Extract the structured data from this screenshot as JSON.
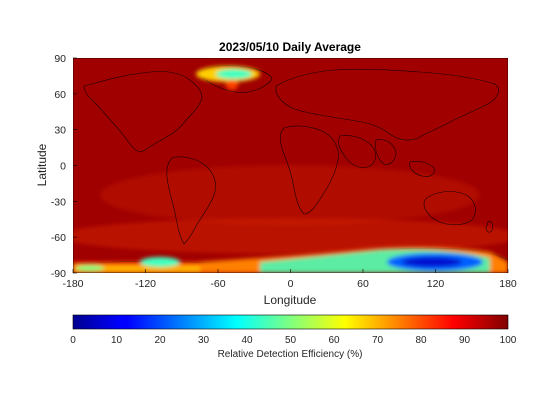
{
  "chart_data": {
    "type": "heatmap",
    "title": "2023/05/10 Daily Average",
    "xlabel": "Longitude",
    "ylabel": "Latitude",
    "xlim": [
      -180,
      180
    ],
    "ylim": [
      -90,
      90
    ],
    "xticks": [
      -180,
      -120,
      -60,
      0,
      60,
      120,
      180
    ],
    "yticks": [
      90,
      60,
      30,
      0,
      -30,
      -60,
      -90
    ],
    "colorbar": {
      "label": "Relative Detection Efficiency (%)",
      "ticks": [
        0,
        10,
        20,
        30,
        40,
        50,
        60,
        70,
        80,
        90,
        100
      ],
      "range": [
        0,
        100
      ],
      "colormap": "jet"
    },
    "background_value": 97,
    "regions": [
      {
        "name": "greenland",
        "lon": [
          -68,
          -22
        ],
        "lat": [
          60,
          84
        ],
        "value": 45
      },
      {
        "name": "antarctica-east",
        "lon": [
          70,
          165
        ],
        "lat": [
          -88,
          -68
        ],
        "value": 15
      },
      {
        "name": "antarctica-west",
        "lon": [
          -135,
          -102
        ],
        "lat": [
          -86,
          -76
        ],
        "value": 38
      },
      {
        "name": "antarctica-margin",
        "lon": [
          -180,
          180
        ],
        "lat": [
          -90,
          -70
        ],
        "value": 70
      }
    ]
  },
  "colors": {
    "background": "#ffffff",
    "axes_text": "#262626",
    "coast": "#000000"
  }
}
